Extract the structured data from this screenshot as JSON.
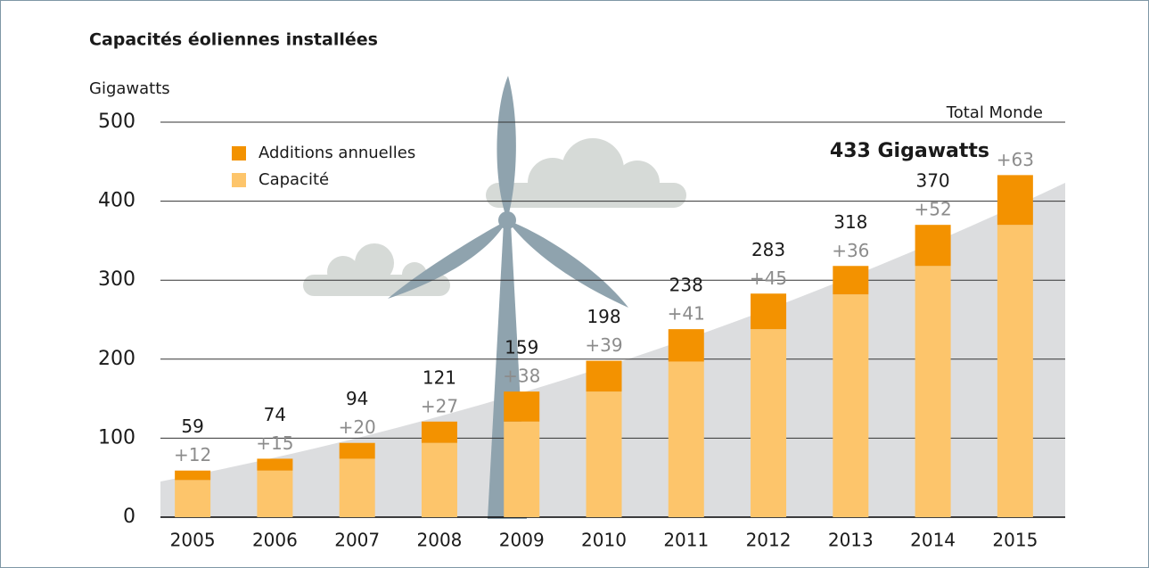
{
  "chart_data": {
    "type": "bar",
    "stacked": true,
    "title": "Capacités éoliennes installées",
    "y_label": "Gigawatts",
    "annotations": {
      "corner": "Total Monde",
      "total": "433 Gigawatts"
    },
    "categories": [
      "2005",
      "2006",
      "2007",
      "2008",
      "2009",
      "2010",
      "2011",
      "2012",
      "2013",
      "2014",
      "2015"
    ],
    "series": [
      {
        "name": "Capacité",
        "color": "#fdc56b",
        "values": [
          47,
          59,
          74,
          94,
          121,
          159,
          197,
          238,
          282,
          318,
          370
        ]
      },
      {
        "name": "Additions annuelles",
        "color": "#f39200",
        "values": [
          12,
          15,
          20,
          27,
          38,
          39,
          41,
          45,
          36,
          52,
          63
        ],
        "value_labels": [
          "+12",
          "+15",
          "+20",
          "+27",
          "+38",
          "+39",
          "+41",
          "+45",
          "+36",
          "+52",
          "+63"
        ]
      }
    ],
    "totals": [
      59,
      74,
      94,
      121,
      159,
      198,
      238,
      283,
      318,
      370,
      null
    ],
    "ylim": [
      0,
      500
    ],
    "yticks": [
      0,
      100,
      200,
      300,
      400,
      500
    ],
    "grid": true
  }
}
